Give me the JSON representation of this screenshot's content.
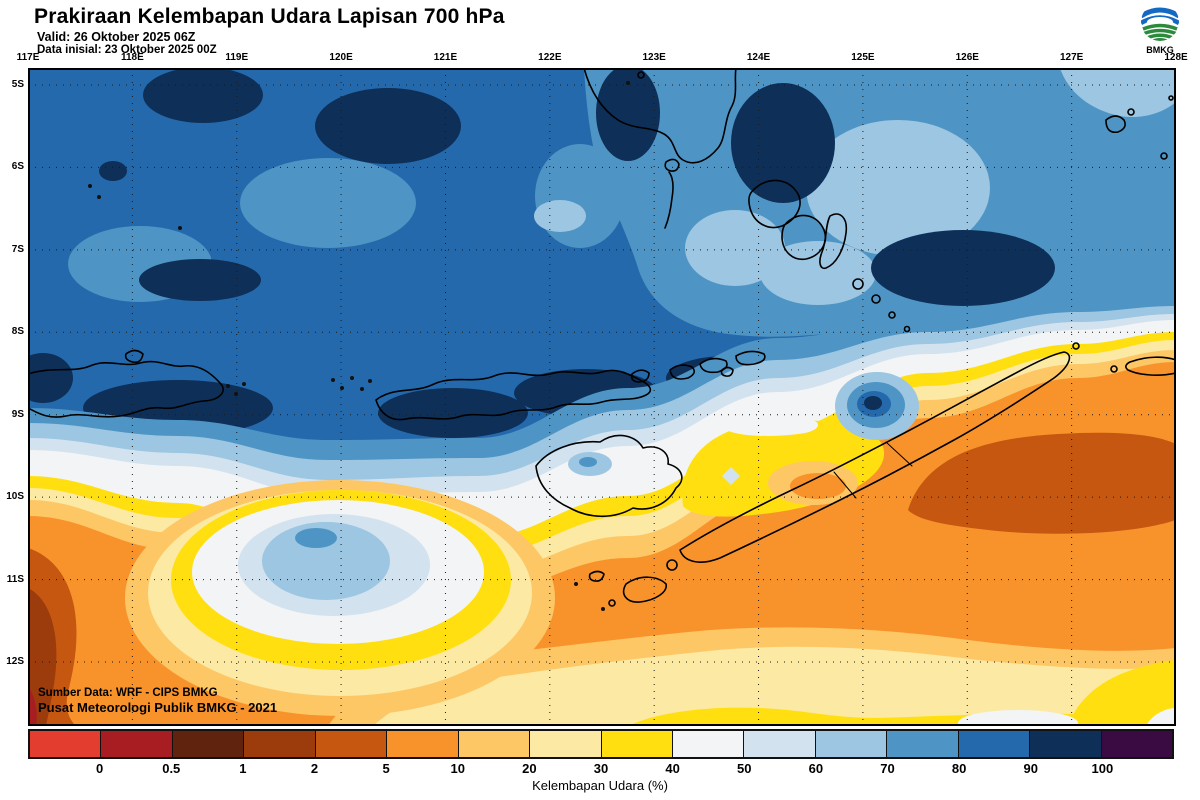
{
  "header": {
    "title": "Prakiraan Kelembapan Udara Lapisan 700 hPa",
    "valid_line": "Valid: 26 Oktober 2025 06Z",
    "init_line": "Data inisial: 23 Oktober 2025 00Z",
    "logo_text": "BMKG"
  },
  "map": {
    "lon_labels": [
      "117E",
      "118E",
      "119E",
      "120E",
      "121E",
      "122E",
      "123E",
      "124E",
      "125E",
      "126E",
      "127E",
      "128E"
    ],
    "lat_labels": [
      "5S",
      "6S",
      "7S",
      "8S",
      "9S",
      "10S",
      "11S",
      "12S"
    ],
    "source_line1": "Sumber Data: WRF - CIPS BMKG",
    "source_line2": "Pusat Meteorologi Publik BMKG - 2021"
  },
  "colorbar": {
    "caption": "Kelembapan Udara (%)",
    "tick_labels": [
      "0",
      "0.5",
      "1",
      "2",
      "5",
      "10",
      "20",
      "30",
      "40",
      "50",
      "60",
      "70",
      "80",
      "90",
      "100"
    ],
    "colors": [
      "#e23d2e",
      "#a81d22",
      "#5f230e",
      "#9c3b0b",
      "#c65711",
      "#f8932c",
      "#fdc765",
      "#fce9a3",
      "#ffdf10",
      "#f2f4f5",
      "#d3e2ef",
      "#9cc6e1",
      "#4e95c5",
      "#2569ad",
      "#0e2f57",
      "#3a0a43"
    ]
  },
  "chart_data": {
    "type": "heatmap",
    "title": "Prakiraan Kelembapan Udara Lapisan 700 hPa",
    "valid": "26 Oktober 2025 06Z",
    "data_initial": "23 Oktober 2025 00Z",
    "lon_range": [
      "117E",
      "128E"
    ],
    "lat_range": [
      "5S",
      "12S"
    ],
    "colorbar_label": "Kelembapan Udara (%)",
    "colorbar_ticks": [
      0,
      0.5,
      1,
      2,
      5,
      10,
      20,
      30,
      40,
      50,
      60,
      70,
      80,
      90,
      100
    ],
    "summary": "Kelembapan tinggi 70-100% menutupi bagian utara peta (biru, sekitar 5S-8S) dengan inti 90-100% di atas rangkaian pulau; pita transisi putih 40-50% sekitar 9S-10S; udara kering 2-40% (kuning-jingga) di selatan, paling kering di kiri bawah dan tenggara peta"
  }
}
